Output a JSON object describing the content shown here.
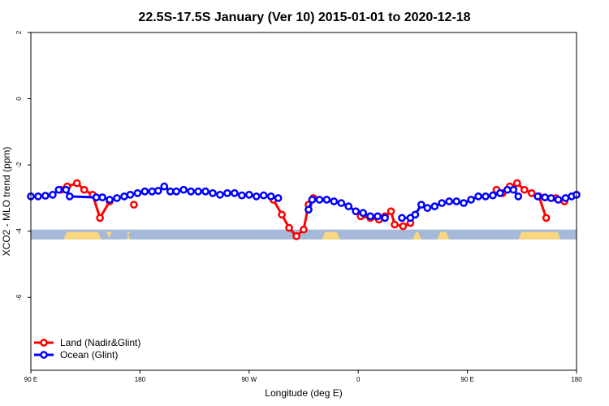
{
  "chart_data": {
    "type": "line",
    "title": "22.5S-17.5S January (Ver 10)   2015-01-01 to 2020-12-18",
    "xlabel": "Longitude (deg E)",
    "ylabel": "XCO2 - MLO trend (ppm)",
    "xlim": [
      90,
      540
    ],
    "ylim": [
      -8.2,
      2.0
    ],
    "x_ticks": [
      90,
      180,
      270,
      360,
      450,
      540
    ],
    "x_tick_labels": [
      "90 E",
      "180",
      "90 W",
      "0",
      "90 E",
      "180"
    ],
    "y_ticks": [
      2,
      0,
      -2,
      -4,
      -6
    ],
    "y_tick_labels": [
      "2",
      "0",
      "-2",
      "-4",
      "-6"
    ],
    "grid": false,
    "legend_position": "bottom-left",
    "colors": {
      "land": "#ff0000",
      "ocean": "#0000ff",
      "land_band": "#f9d77e",
      "ocean_band": "#a6b9d9"
    },
    "series": [
      {
        "name": "Land (Nadir&Glint)",
        "color": "#ff0000",
        "segments": [
          [
            [
              115,
              -2.75
            ],
            [
              120,
              -2.65
            ],
            [
              128,
              -2.55
            ],
            [
              134,
              -2.75
            ],
            [
              141,
              -2.9
            ],
            [
              147,
              -3.6
            ],
            [
              155,
              -3.1
            ]
          ],
          [
            [
              175,
              -3.2
            ]
          ],
          [
            [
              290,
              -3.05
            ],
            [
              297,
              -3.5
            ],
            [
              303,
              -3.9
            ],
            [
              309,
              -4.15
            ],
            [
              315,
              -3.95
            ],
            [
              319,
              -3.2
            ],
            [
              323,
              -3.0
            ]
          ],
          [
            [
              362,
              -3.55
            ],
            [
              370,
              -3.6
            ],
            [
              377,
              -3.65
            ],
            [
              382,
              -3.55
            ],
            [
              387,
              -3.4
            ],
            [
              390,
              -3.8
            ],
            [
              397,
              -3.85
            ],
            [
              403,
              -3.75
            ]
          ],
          [
            [
              474,
              -2.75
            ],
            [
              479,
              -2.85
            ],
            [
              485,
              -2.65
            ],
            [
              491,
              -2.55
            ],
            [
              497,
              -2.75
            ],
            [
              503,
              -2.85
            ],
            [
              509,
              -2.95
            ],
            [
              515,
              -3.6
            ]
          ],
          [
            [
              523,
              -3.0
            ],
            [
              530,
              -3.1
            ]
          ]
        ]
      },
      {
        "name": "Ocean (Glint)",
        "color": "#0000ff",
        "segments": [
          [
            [
              90,
              -2.95
            ],
            [
              96,
              -2.95
            ],
            [
              102,
              -2.93
            ],
            [
              108,
              -2.9
            ],
            [
              113,
              -2.75
            ],
            [
              119,
              -2.75
            ],
            [
              122,
              -2.95
            ],
            [
              144,
              -2.98
            ],
            [
              149,
              -2.98
            ],
            [
              155,
              -3.05
            ],
            [
              161,
              -3.0
            ],
            [
              167,
              -2.95
            ],
            [
              172,
              -2.9
            ],
            [
              178,
              -2.85
            ],
            [
              184,
              -2.8
            ],
            [
              190,
              -2.8
            ],
            [
              195,
              -2.78
            ],
            [
              200,
              -2.65
            ],
            [
              205,
              -2.8
            ],
            [
              210,
              -2.8
            ],
            [
              216,
              -2.75
            ],
            [
              222,
              -2.8
            ],
            [
              228,
              -2.8
            ],
            [
              234,
              -2.8
            ],
            [
              240,
              -2.85
            ],
            [
              246,
              -2.9
            ],
            [
              252,
              -2.85
            ],
            [
              258,
              -2.85
            ],
            [
              264,
              -2.92
            ],
            [
              270,
              -2.9
            ],
            [
              276,
              -2.95
            ],
            [
              282,
              -2.92
            ],
            [
              288,
              -2.95
            ],
            [
              294,
              -3.0
            ]
          ],
          [
            [
              319,
              -3.35
            ],
            [
              322,
              -3.05
            ],
            [
              328,
              -3.05
            ],
            [
              334,
              -3.05
            ],
            [
              340,
              -3.1
            ],
            [
              346,
              -3.15
            ],
            [
              352,
              -3.25
            ],
            [
              358,
              -3.4
            ],
            [
              364,
              -3.45
            ],
            [
              370,
              -3.55
            ],
            [
              376,
              -3.55
            ],
            [
              382,
              -3.6
            ]
          ],
          [
            [
              396,
              -3.6
            ],
            [
              403,
              -3.6
            ],
            [
              407,
              -3.5
            ],
            [
              412,
              -3.2
            ],
            [
              417,
              -3.3
            ],
            [
              423,
              -3.25
            ],
            [
              429,
              -3.15
            ],
            [
              435,
              -3.1
            ],
            [
              441,
              -3.1
            ],
            [
              447,
              -3.15
            ],
            [
              453,
              -3.05
            ],
            [
              459,
              -2.95
            ],
            [
              465,
              -2.95
            ],
            [
              471,
              -2.92
            ],
            [
              477,
              -2.85
            ],
            [
              483,
              -2.75
            ],
            [
              488,
              -2.75
            ],
            [
              492,
              -2.95
            ]
          ],
          [
            [
              508,
              -2.95
            ],
            [
              514,
              -2.98
            ],
            [
              519,
              -3.0
            ],
            [
              525,
              -3.05
            ],
            [
              531,
              -3.0
            ],
            [
              536,
              -2.95
            ],
            [
              540,
              -2.9
            ]
          ]
        ]
      }
    ],
    "surface_band": {
      "y_top": -3.95,
      "y_bottom": -4.25,
      "land_ranges": [
        [
          117,
          148
        ],
        [
          154,
          155
        ],
        [
          169,
          172
        ],
        [
          330,
          345
        ],
        [
          405,
          412
        ],
        [
          425,
          435
        ],
        [
          492,
          527
        ]
      ]
    }
  }
}
